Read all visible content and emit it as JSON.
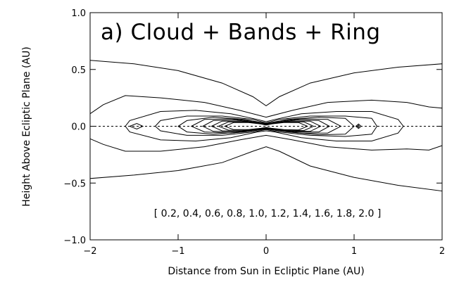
{
  "chart_data": {
    "type": "contour",
    "title": "a) Cloud + Bands + Ring",
    "xlabel": "Distance from Sun in Ecliptic Plane (AU)",
    "ylabel": "Height Above Ecliptic Plane (AU)",
    "xlim": [
      -2,
      2
    ],
    "ylim": [
      -1,
      1
    ],
    "xticks": [
      -2,
      -1,
      0,
      1,
      2
    ],
    "xtick_labels": [
      "−2",
      "−1",
      "0",
      "1",
      "2"
    ],
    "yticks": [
      1.0,
      0.5,
      0.0,
      -0.5,
      -1.0
    ],
    "ytick_labels": [
      "1.0",
      "0.5",
      "0.0",
      "−0.5",
      "−1.0"
    ],
    "levels": [
      0.2,
      0.4,
      0.6,
      0.8,
      1.0,
      1.2,
      1.4,
      1.6,
      1.8,
      2.0
    ],
    "levels_label": "[ 0.2, 0.4, 0.6, 0.8, 1.0, 1.2, 1.4, 1.6, 1.8, 2.0 ]",
    "ecliptic_line_y": 0.0,
    "contours": [
      {
        "level": 0.2,
        "points": [
          [
            -2.0,
            0.58
          ],
          [
            -1.5,
            0.55
          ],
          [
            -1.0,
            0.49
          ],
          [
            -0.5,
            0.38
          ],
          [
            -0.15,
            0.26
          ],
          [
            0.0,
            0.18
          ],
          [
            0.15,
            0.26
          ],
          [
            0.5,
            0.38
          ],
          [
            1.0,
            0.47
          ],
          [
            1.5,
            0.52
          ],
          [
            2.0,
            0.55
          ],
          [
            2.0,
            -0.57
          ],
          [
            1.5,
            -0.52
          ],
          [
            1.0,
            -0.45
          ],
          [
            0.5,
            -0.35
          ],
          [
            0.15,
            -0.22
          ],
          [
            0.0,
            -0.18
          ],
          [
            -0.15,
            -0.22
          ],
          [
            -0.5,
            -0.32
          ],
          [
            -1.0,
            -0.39
          ],
          [
            -1.5,
            -0.43
          ],
          [
            -2.0,
            -0.46
          ]
        ]
      },
      {
        "level": 0.4,
        "points": [
          [
            -2.0,
            0.11
          ],
          [
            -1.85,
            0.19
          ],
          [
            -1.6,
            0.27
          ],
          [
            -1.2,
            0.25
          ],
          [
            -0.7,
            0.21
          ],
          [
            -0.3,
            0.14
          ],
          [
            0.0,
            0.08
          ],
          [
            0.3,
            0.14
          ],
          [
            0.7,
            0.21
          ],
          [
            1.2,
            0.23
          ],
          [
            1.6,
            0.21
          ],
          [
            1.85,
            0.17
          ],
          [
            2.0,
            0.16
          ],
          [
            2.0,
            -0.17
          ],
          [
            1.85,
            -0.21
          ],
          [
            1.6,
            -0.2
          ],
          [
            1.2,
            -0.21
          ],
          [
            0.7,
            -0.18
          ],
          [
            0.3,
            -0.12
          ],
          [
            0.0,
            -0.08
          ],
          [
            -0.3,
            -0.12
          ],
          [
            -0.7,
            -0.18
          ],
          [
            -1.2,
            -0.22
          ],
          [
            -1.6,
            -0.22
          ],
          [
            -1.85,
            -0.16
          ],
          [
            -2.0,
            -0.11
          ]
        ]
      },
      {
        "level": 0.6,
        "points": [
          [
            -1.6,
            0.0
          ],
          [
            -1.55,
            0.05
          ],
          [
            -1.2,
            0.13
          ],
          [
            -0.8,
            0.14
          ],
          [
            -0.4,
            0.11
          ],
          [
            -0.1,
            0.06
          ],
          [
            0.0,
            0.04
          ],
          [
            0.1,
            0.06
          ],
          [
            0.4,
            0.11
          ],
          [
            0.8,
            0.13
          ],
          [
            1.2,
            0.13
          ],
          [
            1.5,
            0.06
          ],
          [
            1.56,
            0.0
          ],
          [
            1.5,
            -0.06
          ],
          [
            1.2,
            -0.13
          ],
          [
            0.8,
            -0.13
          ],
          [
            0.4,
            -0.1
          ],
          [
            0.1,
            -0.05
          ],
          [
            0.0,
            -0.04
          ],
          [
            -0.1,
            -0.05
          ],
          [
            -0.4,
            -0.1
          ],
          [
            -0.8,
            -0.13
          ],
          [
            -1.2,
            -0.12
          ],
          [
            -1.55,
            -0.05
          ]
        ]
      },
      {
        "level": 0.8,
        "points": [
          [
            -1.26,
            0.0
          ],
          [
            -1.2,
            0.05
          ],
          [
            -0.9,
            0.09
          ],
          [
            -0.5,
            0.09
          ],
          [
            -0.15,
            0.06
          ],
          [
            0.0,
            0.03
          ],
          [
            0.15,
            0.06
          ],
          [
            0.5,
            0.09
          ],
          [
            0.9,
            0.09
          ],
          [
            1.2,
            0.07
          ],
          [
            1.26,
            0.0
          ],
          [
            1.2,
            -0.07
          ],
          [
            0.9,
            -0.09
          ],
          [
            0.5,
            -0.08
          ],
          [
            0.15,
            -0.05
          ],
          [
            0.0,
            -0.03
          ],
          [
            -0.15,
            -0.05
          ],
          [
            -0.5,
            -0.08
          ],
          [
            -0.9,
            -0.08
          ],
          [
            -1.2,
            -0.04
          ]
        ]
      },
      {
        "level": 1.0,
        "points": [
          [
            -1.0,
            0.0
          ],
          [
            -0.9,
            0.05
          ],
          [
            -0.6,
            0.08
          ],
          [
            -0.25,
            0.06
          ],
          [
            0.0,
            0.025
          ],
          [
            0.25,
            0.06
          ],
          [
            0.6,
            0.08
          ],
          [
            0.9,
            0.07
          ],
          [
            1.0,
            0.0
          ],
          [
            0.9,
            -0.07
          ],
          [
            0.6,
            -0.075
          ],
          [
            0.25,
            -0.05
          ],
          [
            0.0,
            -0.025
          ],
          [
            -0.25,
            -0.05
          ],
          [
            -0.6,
            -0.07
          ],
          [
            -0.9,
            -0.05
          ]
        ]
      },
      {
        "level": 1.2,
        "points": [
          [
            -0.85,
            0.0
          ],
          [
            -0.7,
            0.06
          ],
          [
            -0.4,
            0.065
          ],
          [
            -0.15,
            0.045
          ],
          [
            0.0,
            0.022
          ],
          [
            0.15,
            0.045
          ],
          [
            0.4,
            0.065
          ],
          [
            0.7,
            0.06
          ],
          [
            0.85,
            0.0
          ],
          [
            0.7,
            -0.06
          ],
          [
            0.4,
            -0.06
          ],
          [
            0.15,
            -0.04
          ],
          [
            0.0,
            -0.022
          ],
          [
            -0.15,
            -0.04
          ],
          [
            -0.4,
            -0.06
          ],
          [
            -0.7,
            -0.05
          ]
        ]
      },
      {
        "level": 1.4,
        "points": [
          [
            -0.72,
            0.0
          ],
          [
            -0.6,
            0.05
          ],
          [
            -0.35,
            0.055
          ],
          [
            -0.12,
            0.035
          ],
          [
            0.0,
            0.018
          ],
          [
            0.12,
            0.035
          ],
          [
            0.35,
            0.055
          ],
          [
            0.6,
            0.05
          ],
          [
            0.72,
            0.0
          ],
          [
            0.6,
            -0.05
          ],
          [
            0.35,
            -0.05
          ],
          [
            0.12,
            -0.032
          ],
          [
            0.0,
            -0.018
          ],
          [
            -0.12,
            -0.032
          ],
          [
            -0.35,
            -0.05
          ],
          [
            -0.6,
            -0.045
          ]
        ]
      },
      {
        "level": 1.6,
        "points": [
          [
            -0.62,
            0.0
          ],
          [
            -0.5,
            0.045
          ],
          [
            -0.28,
            0.045
          ],
          [
            -0.1,
            0.03
          ],
          [
            0.0,
            0.015
          ],
          [
            0.1,
            0.03
          ],
          [
            0.28,
            0.045
          ],
          [
            0.5,
            0.045
          ],
          [
            0.62,
            0.0
          ],
          [
            0.5,
            -0.045
          ],
          [
            0.28,
            -0.043
          ],
          [
            0.1,
            -0.027
          ],
          [
            0.0,
            -0.015
          ],
          [
            -0.1,
            -0.027
          ],
          [
            -0.28,
            -0.043
          ],
          [
            -0.5,
            -0.04
          ]
        ]
      },
      {
        "level": 1.8,
        "points": [
          [
            -0.54,
            0.0
          ],
          [
            -0.43,
            0.038
          ],
          [
            -0.24,
            0.038
          ],
          [
            -0.08,
            0.024
          ],
          [
            0.0,
            0.012
          ],
          [
            0.08,
            0.024
          ],
          [
            0.24,
            0.038
          ],
          [
            0.43,
            0.038
          ],
          [
            0.54,
            0.0
          ],
          [
            0.43,
            -0.038
          ],
          [
            0.24,
            -0.036
          ],
          [
            0.08,
            -0.022
          ],
          [
            0.0,
            -0.012
          ],
          [
            -0.08,
            -0.022
          ],
          [
            -0.24,
            -0.036
          ],
          [
            -0.43,
            -0.034
          ]
        ]
      },
      {
        "level": 2.0,
        "points": [
          [
            -0.47,
            0.0
          ],
          [
            -0.37,
            0.032
          ],
          [
            -0.2,
            0.032
          ],
          [
            -0.06,
            0.02
          ],
          [
            0.0,
            0.01
          ],
          [
            0.06,
            0.02
          ],
          [
            0.2,
            0.032
          ],
          [
            0.37,
            0.032
          ],
          [
            0.47,
            0.0
          ],
          [
            0.37,
            -0.032
          ],
          [
            0.2,
            -0.03
          ],
          [
            0.06,
            -0.018
          ],
          [
            0.0,
            -0.01
          ],
          [
            -0.06,
            -0.018
          ],
          [
            -0.2,
            -0.03
          ],
          [
            -0.37,
            -0.03
          ]
        ]
      },
      {
        "level": 0.6,
        "points": [
          [
            -1.55,
            0.0
          ],
          [
            -1.47,
            0.025
          ],
          [
            -1.4,
            0.0
          ],
          [
            -1.47,
            -0.025
          ]
        ]
      },
      {
        "level": 0.8,
        "points": [
          [
            1.02,
            0.0
          ],
          [
            1.05,
            0.02
          ],
          [
            1.08,
            0.0
          ],
          [
            1.05,
            -0.02
          ]
        ]
      },
      {
        "level": 1.0,
        "points": [
          [
            1.04,
            0.0
          ],
          [
            1.05,
            0.01
          ],
          [
            1.06,
            0.0
          ],
          [
            1.05,
            -0.01
          ]
        ]
      }
    ]
  }
}
